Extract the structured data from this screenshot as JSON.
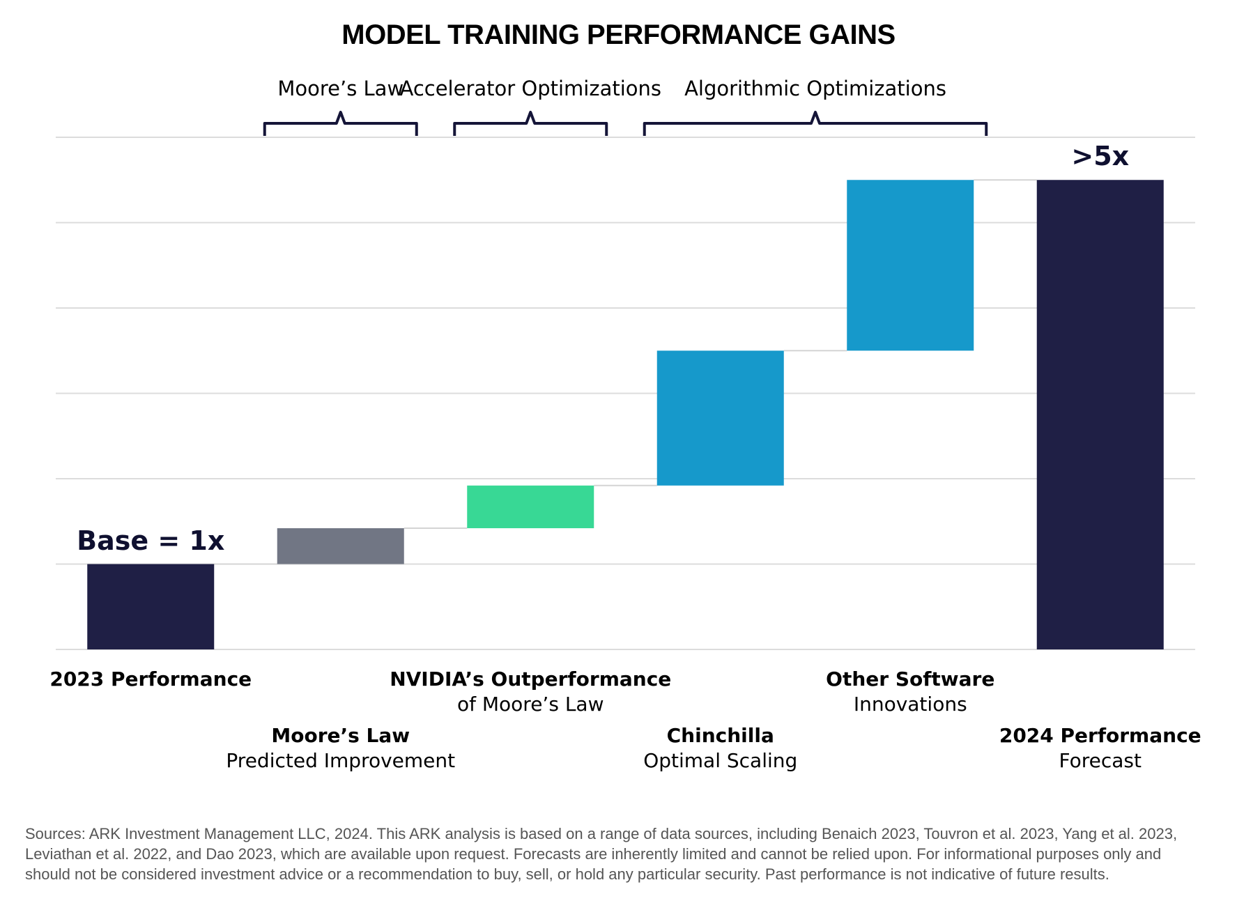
{
  "chart_data": {
    "type": "bar",
    "title": "MODEL TRAINING PERFORMANCE GAINS",
    "categories": [
      {
        "bold": "2023 Performance",
        "light": ""
      },
      {
        "bold": "Moore’s Law",
        "light": "Predicted Improvement"
      },
      {
        "bold": "NVIDIA’s Outperformance",
        "light": "of Moore’s Law"
      },
      {
        "bold": "Chinchilla",
        "light": "Optimal Scaling"
      },
      {
        "bold": "Other Software",
        "light": "Innovations"
      },
      {
        "bold": "2024 Performance",
        "light": "Forecast"
      }
    ],
    "bars": [
      {
        "start": 0,
        "end": 1.0,
        "color": "#1f1f45"
      },
      {
        "start": 1.0,
        "end": 1.42,
        "color": "#717684"
      },
      {
        "start": 1.42,
        "end": 1.92,
        "color": "#38d895"
      },
      {
        "start": 1.92,
        "end": 3.5,
        "color": "#1699cb"
      },
      {
        "start": 3.5,
        "end": 5.5,
        "color": "#1699cb"
      },
      {
        "start": 0,
        "end": 5.5,
        "color": "#1f1f45"
      }
    ],
    "value_labels": [
      {
        "bar": 0,
        "text": "Base = 1x"
      },
      {
        "bar": 5,
        "text": ">5x"
      }
    ],
    "groups": [
      {
        "label": "Moore’s Law",
        "from": 1,
        "to": 1
      },
      {
        "label": "Accelerator Optimizations",
        "from": 2,
        "to": 2
      },
      {
        "label": "Algorithmic Optimizations",
        "from": 3,
        "to": 4
      }
    ],
    "ylim": [
      0,
      6
    ],
    "grid": true
  },
  "footnote": "Sources: ARK Investment Management LLC, 2024. This ARK analysis is based on a range of data sources, including Benaich 2023, Touvron et al. 2023, Yang et al. 2023, Leviathan et al. 2022, and Dao 2023, which are available upon request. Forecasts are inherently limited and cannot be relied upon. For informational purposes only and should not be considered investment advice or a recommendation to buy, sell, or hold any particular security. Past performance is not indicative of future results."
}
